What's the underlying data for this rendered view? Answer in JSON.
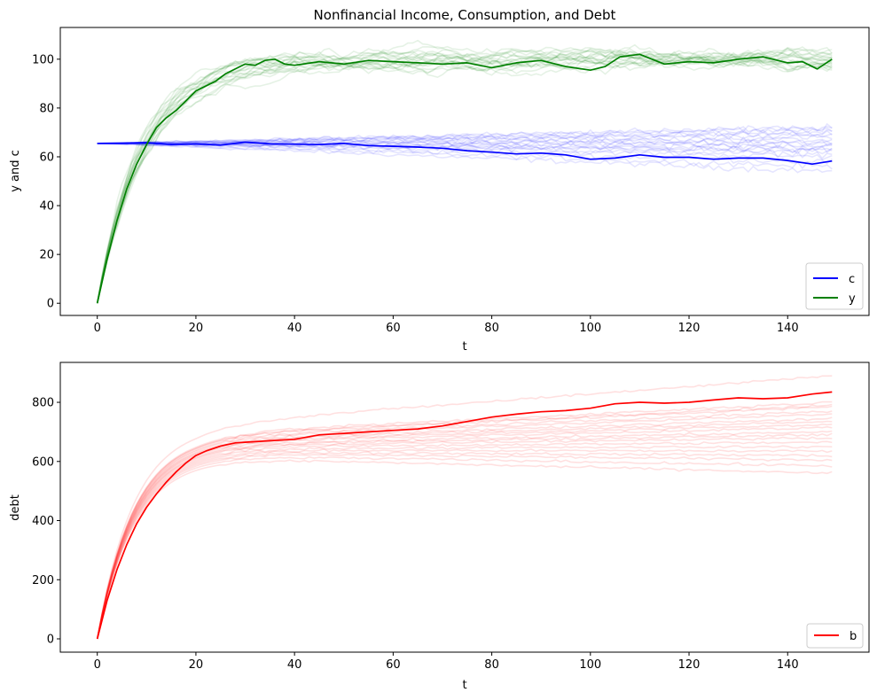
{
  "figure": {
    "background": "#ffffff"
  },
  "chart_data": [
    {
      "type": "line",
      "title": "Nonfinancial Income, Consumption, and Debt",
      "xlabel": "t",
      "ylabel": "y and c",
      "xlim": [
        -7.5,
        156.5
      ],
      "ylim": [
        -5,
        113
      ],
      "xticks": [
        0,
        20,
        40,
        60,
        80,
        100,
        120,
        140
      ],
      "yticks": [
        0,
        20,
        40,
        60,
        80,
        100
      ],
      "grid": false,
      "legend_position": "lower-right",
      "legend": [
        {
          "label": "c",
          "color": "#0000ff"
        },
        {
          "label": "y",
          "color": "#008000"
        }
      ],
      "faint_paths": {
        "description_count": 20,
        "c": {
          "color": "#0000ff",
          "alpha": 0.1,
          "start": 65.5,
          "end_values": [
            54,
            56,
            58,
            60,
            61,
            62,
            63,
            64,
            65,
            66,
            66,
            67,
            68,
            69,
            70,
            70,
            71,
            72,
            72,
            63
          ]
        },
        "y": {
          "color": "#008000",
          "alpha": 0.1,
          "plateau": 100,
          "end_range": [
            96,
            106
          ]
        }
      },
      "series": [
        {
          "name": "c",
          "color": "#0000ff",
          "x": [
            0,
            5,
            10,
            15,
            20,
            25,
            30,
            35,
            40,
            45,
            50,
            55,
            60,
            65,
            70,
            75,
            80,
            85,
            90,
            95,
            100,
            105,
            110,
            115,
            120,
            125,
            130,
            135,
            140,
            145,
            149
          ],
          "values": [
            65.5,
            65.6,
            65.8,
            65.0,
            65.3,
            64.8,
            66.0,
            65.3,
            65.2,
            65.0,
            65.5,
            64.6,
            64.3,
            64.0,
            63.5,
            62.5,
            61.9,
            61.2,
            61.5,
            60.8,
            59.0,
            59.5,
            60.8,
            59.8,
            59.8,
            59.0,
            59.5,
            59.5,
            58.5,
            57.0,
            58.3
          ]
        },
        {
          "name": "y",
          "color": "#008000",
          "x": [
            0,
            2,
            4,
            6,
            8,
            10,
            12,
            14,
            16,
            18,
            20,
            22,
            24,
            26,
            28,
            30,
            32,
            34,
            36,
            38,
            40,
            45,
            50,
            55,
            60,
            65,
            70,
            75,
            80,
            85,
            90,
            95,
            100,
            103,
            106,
            110,
            115,
            120,
            125,
            130,
            135,
            140,
            143,
            146,
            149
          ],
          "values": [
            0,
            18,
            34,
            47,
            57,
            65,
            72,
            76,
            79,
            83,
            87,
            89,
            91,
            94,
            96,
            98,
            97.5,
            99.5,
            100,
            98,
            97.5,
            99,
            98,
            99.5,
            99,
            98.5,
            98,
            98.5,
            96.5,
            98.5,
            99.5,
            97,
            95.5,
            97,
            101,
            102,
            98,
            99,
            98.5,
            100,
            101,
            98.5,
            99,
            96,
            100
          ]
        }
      ]
    },
    {
      "type": "line",
      "title": "",
      "xlabel": "t",
      "ylabel": "debt",
      "xlim": [
        -7.5,
        156.5
      ],
      "ylim": [
        -45,
        935
      ],
      "xticks": [
        0,
        20,
        40,
        60,
        80,
        100,
        120,
        140
      ],
      "yticks": [
        0,
        200,
        400,
        600,
        800
      ],
      "grid": false,
      "legend_position": "lower-right",
      "legend": [
        {
          "label": "b",
          "color": "#ff0000"
        }
      ],
      "faint_paths": {
        "color": "#ff0000",
        "alpha": 0.12,
        "plateau_values": [
          560,
          585,
          605,
          620,
          635,
          650,
          665,
          680,
          690,
          700,
          715,
          725,
          735,
          745,
          760,
          770,
          785,
          790,
          800,
          890
        ]
      },
      "series": [
        {
          "name": "b",
          "color": "#ff0000",
          "x": [
            0,
            2,
            4,
            6,
            8,
            10,
            12,
            14,
            16,
            18,
            20,
            22,
            25,
            28,
            30,
            35,
            40,
            45,
            50,
            55,
            60,
            65,
            70,
            75,
            80,
            85,
            90,
            95,
            100,
            105,
            110,
            115,
            120,
            125,
            130,
            135,
            140,
            145,
            149
          ],
          "values": [
            0,
            130,
            235,
            320,
            390,
            445,
            490,
            530,
            565,
            595,
            620,
            635,
            652,
            663,
            665,
            670,
            675,
            690,
            695,
            700,
            705,
            710,
            720,
            735,
            750,
            760,
            768,
            772,
            780,
            795,
            800,
            797,
            800,
            808,
            815,
            812,
            815,
            828,
            835
          ]
        }
      ]
    }
  ]
}
